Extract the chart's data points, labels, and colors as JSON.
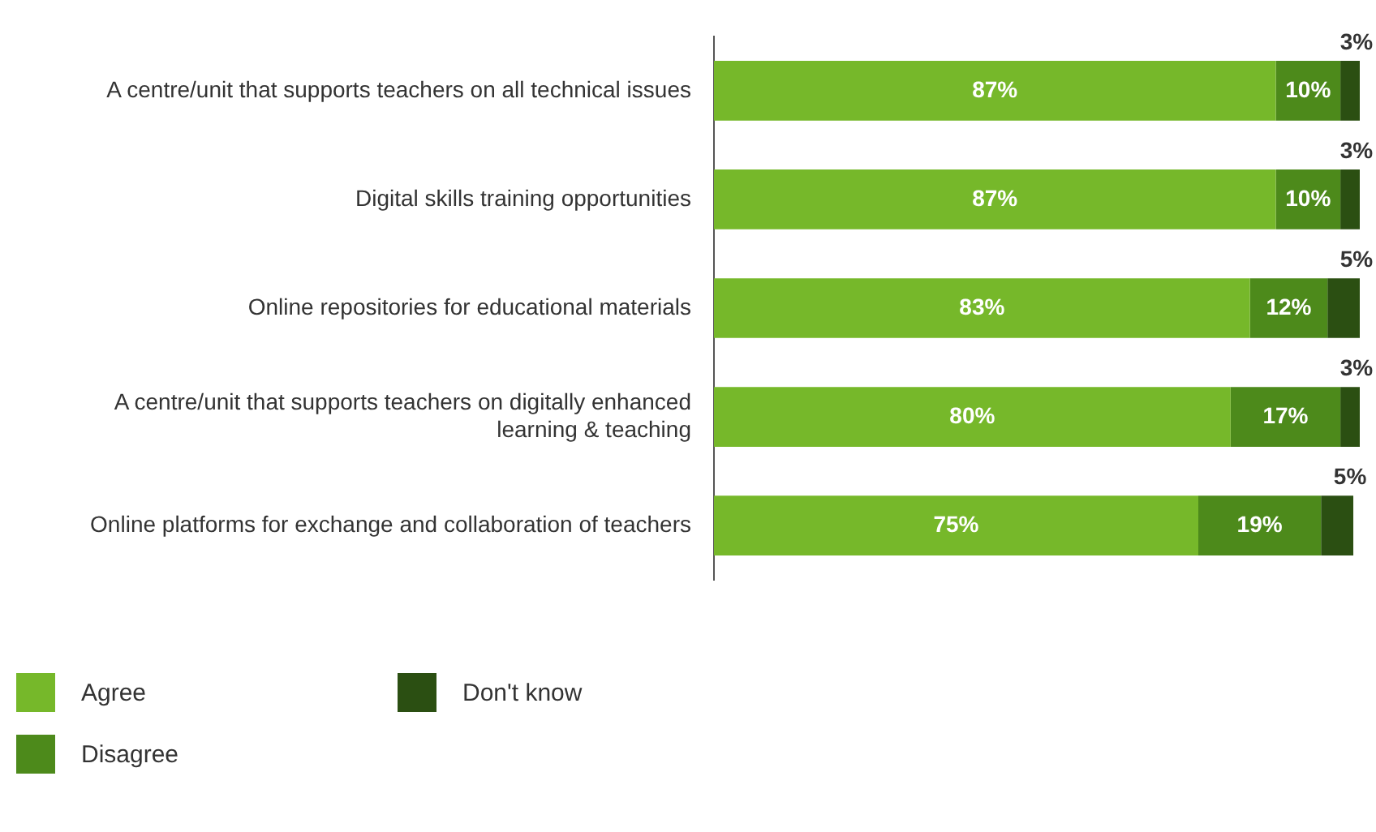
{
  "chart_data": {
    "type": "bar",
    "orientation": "horizontal",
    "stacked": true,
    "tick_labels": "y",
    "legend": "bottom left",
    "categories": [
      "A centre/unit that supports teachers on all technical issues",
      "Digital skills training opportunities",
      "Online repositories for educational materials",
      "A centre/unit that supports teachers on digitally enhanced learning & teaching",
      "Online platforms for exchange and collaboration of teachers"
    ],
    "series": [
      {
        "name": "Agree",
        "color": "#76b82a",
        "values": [
          87,
          87,
          83,
          80,
          75
        ],
        "value_labels": [
          "87%",
          "87%",
          "83%",
          "80%",
          "75%"
        ]
      },
      {
        "name": "Disagree",
        "color": "#4d8a1b",
        "values": [
          10,
          10,
          12,
          17,
          19
        ],
        "value_labels": [
          "10%",
          "10%",
          "12%",
          "17%",
          "19%"
        ]
      },
      {
        "name": "Don't know",
        "color": "#2b4f12",
        "values": [
          3,
          3,
          5,
          3,
          5
        ],
        "value_labels": [
          "3%",
          "3%",
          "5%",
          "3%",
          "5%"
        ]
      }
    ]
  }
}
